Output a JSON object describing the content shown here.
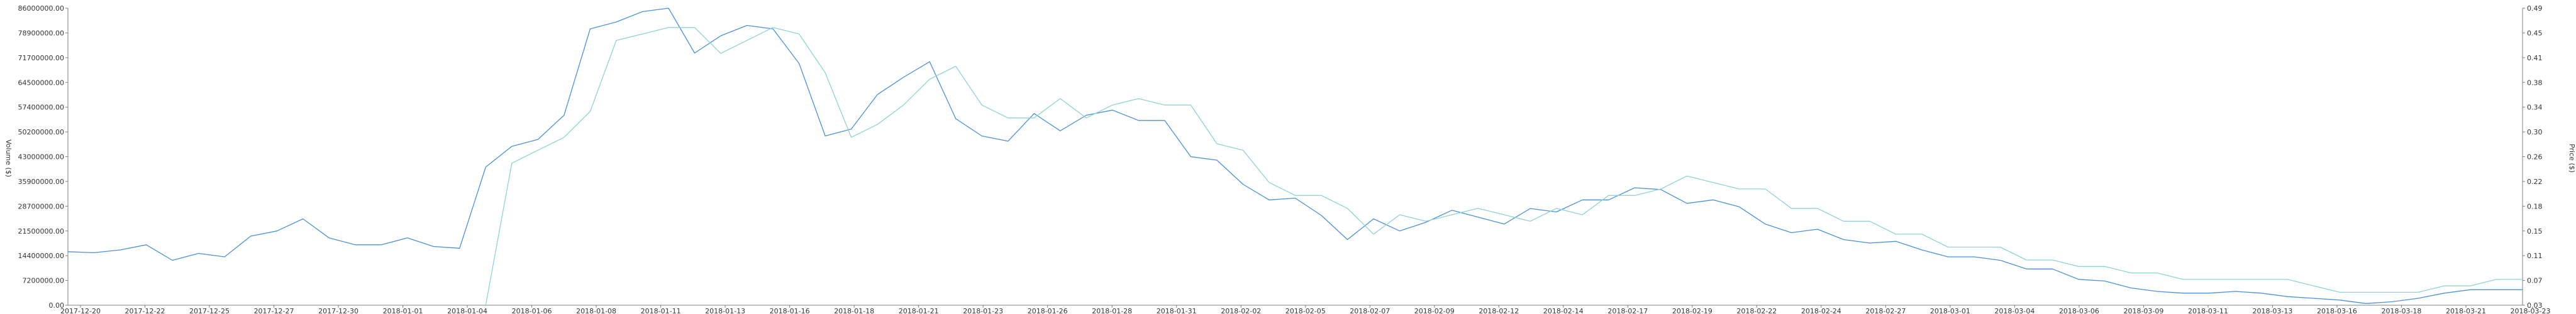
{
  "chart_data": {
    "type": "line",
    "title": "",
    "y_left": {
      "label": "Volume ($)",
      "ticks": [
        "0.00",
        "7200000.00",
        "14400000.00",
        "21500000.00",
        "28700000.00",
        "35900000.00",
        "43000000.00",
        "50200000.00",
        "57400000.00",
        "64500000.00",
        "71700000.00",
        "78900000.00",
        "86000000.00"
      ],
      "range": [
        0,
        86000000
      ]
    },
    "y_right": {
      "label": "Price ($)",
      "ticks": [
        "0.03",
        "0.07",
        "0.11",
        "0.15",
        "0.18",
        "0.22",
        "0.26",
        "0.30",
        "0.34",
        "0.38",
        "0.41",
        "0.45",
        "0.49"
      ],
      "range": [
        0.03,
        0.49
      ]
    },
    "x_labels": [
      "2017-12-20",
      "2017-12-22",
      "2017-12-25",
      "2017-12-27",
      "2017-12-30",
      "2018-01-01",
      "2018-01-04",
      "2018-01-06",
      "2018-01-08",
      "2018-01-11",
      "2018-01-13",
      "2018-01-16",
      "2018-01-18",
      "2018-01-21",
      "2018-01-23",
      "2018-01-26",
      "2018-01-28",
      "2018-01-31",
      "2018-02-02",
      "2018-02-05",
      "2018-02-07",
      "2018-02-09",
      "2018-02-12",
      "2018-02-14",
      "2018-02-17",
      "2018-02-19",
      "2018-02-22",
      "2018-02-24",
      "2018-02-27",
      "2018-03-01",
      "2018-03-04",
      "2018-03-06",
      "2018-03-09",
      "2018-03-11",
      "2018-03-13",
      "2018-03-16",
      "2018-03-18",
      "2018-03-21",
      "2018-03-23"
    ],
    "grid": false,
    "series": [
      {
        "axis": "left",
        "color": "#4a90d9",
        "values": [
          15500000,
          15200000,
          16000000,
          17500000,
          13000000,
          15000000,
          14000000,
          20000000,
          21500000,
          25000000,
          19500000,
          17500000,
          17500000,
          19500000,
          17000000,
          16500000,
          40000000,
          46000000,
          48000000,
          55000000,
          80000000,
          82000000,
          85000000,
          86000000,
          73000000,
          78000000,
          81000000,
          80000000,
          70000000,
          49000000,
          51000000,
          61000000,
          66000000,
          70500000,
          54000000,
          49000000,
          47500000,
          55500000,
          50500000,
          55000000,
          56500000,
          53500000,
          53500000,
          43000000,
          42000000,
          35000000,
          30500000,
          31000000,
          26000000,
          19000000,
          25000000,
          21500000,
          24000000,
          27500000,
          25500000,
          23500000,
          28000000,
          27000000,
          30500000,
          30500000,
          34000000,
          33500000,
          29500000,
          30500000,
          28500000,
          23500000,
          21000000,
          22000000,
          19000000,
          18000000,
          18500000,
          16000000,
          14000000,
          14000000,
          13000000,
          10500000,
          10500000,
          7500000,
          7000000,
          5000000,
          4000000,
          3500000,
          3500000,
          4000000,
          3500000,
          2500000,
          2000000,
          1500000,
          500000,
          1000000,
          2000000,
          3500000,
          4500000,
          4500000,
          4500000
        ]
      },
      {
        "axis": "right",
        "color": "#8fd3cf",
        "values": [
          null,
          null,
          null,
          null,
          null,
          null,
          null,
          null,
          null,
          null,
          null,
          null,
          null,
          null,
          null,
          null,
          0.03,
          0.25,
          0.27,
          0.29,
          0.33,
          0.44,
          0.45,
          0.46,
          0.46,
          0.42,
          0.44,
          0.46,
          0.45,
          0.39,
          0.29,
          0.31,
          0.34,
          0.38,
          0.4,
          0.34,
          0.32,
          0.32,
          0.35,
          0.32,
          0.34,
          0.35,
          0.34,
          0.34,
          0.28,
          0.27,
          0.22,
          0.2,
          0.2,
          0.18,
          0.14,
          0.17,
          0.16,
          0.17,
          0.18,
          0.17,
          0.16,
          0.18,
          0.17,
          0.2,
          0.2,
          0.21,
          0.23,
          0.22,
          0.21,
          0.21,
          0.18,
          0.18,
          0.16,
          0.16,
          0.14,
          0.14,
          0.12,
          0.12,
          0.12,
          0.1,
          0.1,
          0.09,
          0.09,
          0.08,
          0.08,
          0.07,
          0.07,
          0.07,
          0.07,
          0.07,
          0.06,
          0.05,
          0.05,
          0.05,
          0.05,
          0.06,
          0.06,
          0.07,
          0.07
        ]
      }
    ]
  }
}
